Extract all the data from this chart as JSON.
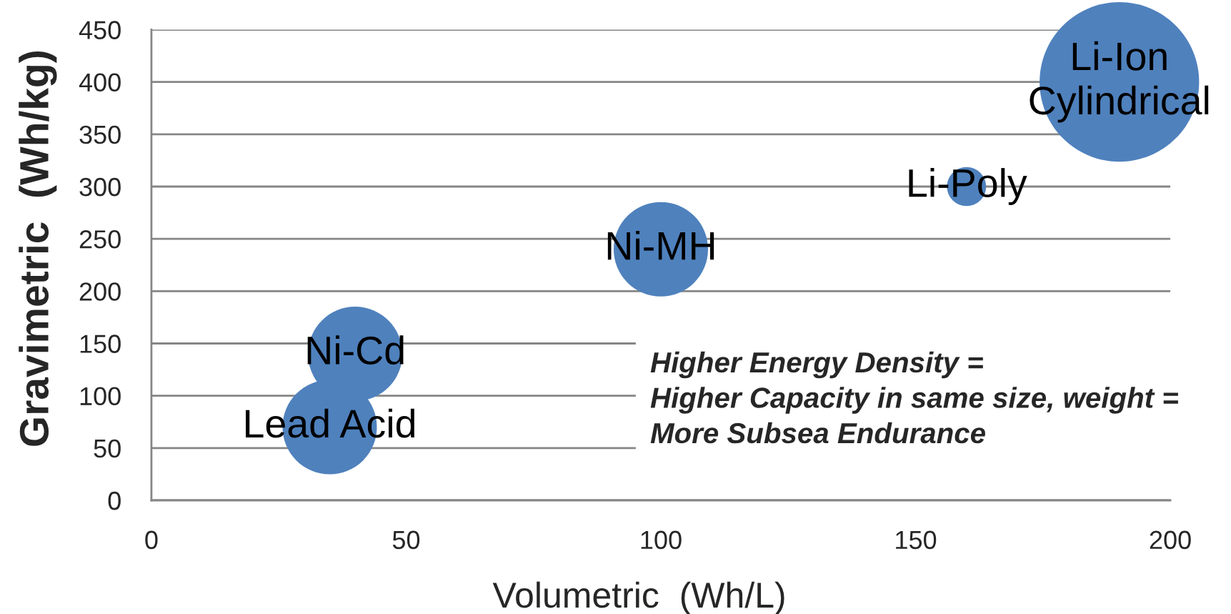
{
  "chart_data": {
    "type": "bubble",
    "xlabel": "Volumetric  (Wh/L)",
    "ylabel": "Gravimetric  (Wh/kg)",
    "xlim": [
      0,
      200
    ],
    "xticks": [
      0,
      50,
      100,
      150,
      200
    ],
    "ylim": [
      0,
      450
    ],
    "yticks": [
      0,
      50,
      100,
      150,
      200,
      250,
      300,
      350,
      400,
      450
    ],
    "grid": "y",
    "legend": false,
    "marker": "circle",
    "series": [
      {
        "name": "Lead Acid",
        "color": "#4f81bd",
        "x": [
          35
        ],
        "values": [
          70
        ],
        "sizes": [
          0.35
        ]
      },
      {
        "name": "Ni-Cd",
        "color": "#4f81bd",
        "x": [
          40
        ],
        "values": [
          140
        ],
        "sizes": [
          0.35
        ]
      },
      {
        "name": "Ni-MH",
        "color": "#4f81bd",
        "x": [
          100
        ],
        "values": [
          240
        ],
        "sizes": [
          0.35
        ]
      },
      {
        "name": "Li-Poly",
        "color": "#4f81bd",
        "x": [
          160
        ],
        "values": [
          300
        ],
        "sizes": [
          0.06
        ]
      },
      {
        "name": "Li-Ion\nCylindrical",
        "color": "#4f81bd",
        "x": [
          190
        ],
        "values": [
          400
        ],
        "sizes": [
          1
        ]
      }
    ],
    "annotations": [
      "Higher Energy Density =\nHigher Capacity in same size, weight =\nMore Subsea Endurance"
    ]
  }
}
